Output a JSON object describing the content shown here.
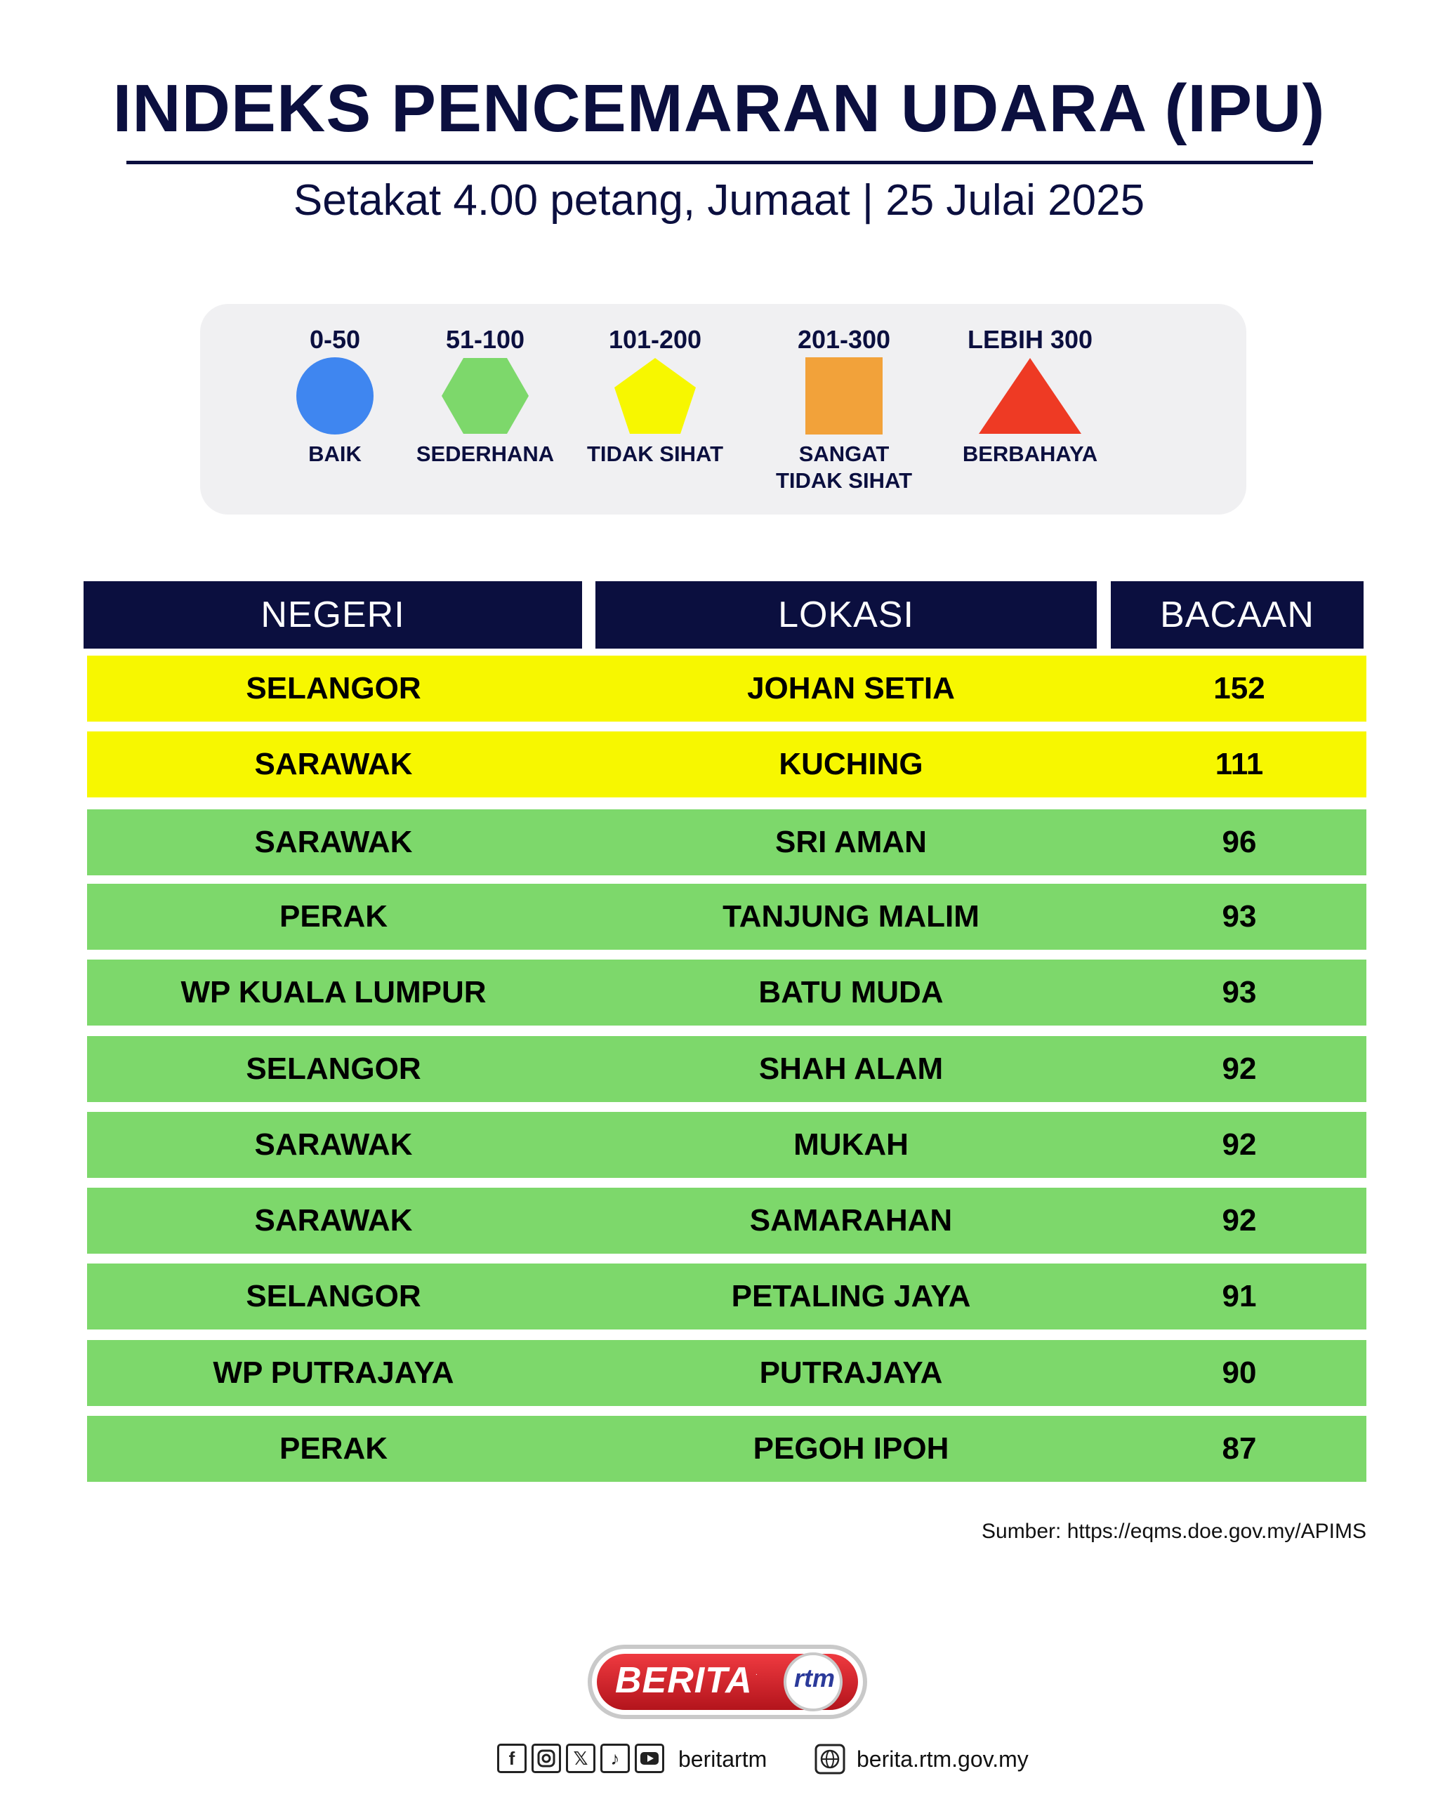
{
  "header": {
    "title": "INDEKS PENCEMARAN UDARA (IPU)",
    "subtitle": "Setakat 4.00 petang, Jumaat | 25 Julai 2025"
  },
  "legend": [
    {
      "range": "0-50",
      "label": "BAIK",
      "shape": "circle",
      "color": "#3f86f0"
    },
    {
      "range": "51-100",
      "label": "SEDERHANA",
      "shape": "hexagon",
      "color": "#7dd86b"
    },
    {
      "range": "101-200",
      "label": "TIDAK SIHAT",
      "shape": "pentagon",
      "color": "#f7f700"
    },
    {
      "range": "201-300",
      "label": "SANGAT TIDAK SIHAT",
      "label_line1": "SANGAT",
      "label_line2": "TIDAK SIHAT",
      "shape": "square",
      "color": "#f2a23a"
    },
    {
      "range": "LEBIH 300",
      "label": "BERBAHAYA",
      "shape": "triangle",
      "color": "#ee3a24"
    }
  ],
  "table": {
    "headers": [
      "NEGERI",
      "LOKASI",
      "BACAAN"
    ],
    "rows": [
      {
        "negeri": "SELANGOR",
        "lokasi": "JOHAN SETIA",
        "bacaan": "152",
        "status": "TIDAK SIHAT"
      },
      {
        "negeri": "SARAWAK",
        "lokasi": "KUCHING",
        "bacaan": "111",
        "status": "TIDAK SIHAT"
      },
      {
        "negeri": "SARAWAK",
        "lokasi": "SRI AMAN",
        "bacaan": "96",
        "status": "SEDERHANA"
      },
      {
        "negeri": "PERAK",
        "lokasi": "TANJUNG MALIM",
        "bacaan": "93",
        "status": "SEDERHANA"
      },
      {
        "negeri": "WP KUALA LUMPUR",
        "lokasi": "BATU MUDA",
        "bacaan": "93",
        "status": "SEDERHANA"
      },
      {
        "negeri": "SELANGOR",
        "lokasi": "SHAH ALAM",
        "bacaan": "92",
        "status": "SEDERHANA"
      },
      {
        "negeri": "SARAWAK",
        "lokasi": "MUKAH",
        "bacaan": "92",
        "status": "SEDERHANA"
      },
      {
        "negeri": "SARAWAK",
        "lokasi": "SAMARAHAN",
        "bacaan": "92",
        "status": "SEDERHANA"
      },
      {
        "negeri": "SELANGOR",
        "lokasi": "PETALING JAYA",
        "bacaan": "91",
        "status": "SEDERHANA"
      },
      {
        "negeri": "WP PUTRAJAYA",
        "lokasi": "PUTRAJAYA",
        "bacaan": "90",
        "status": "SEDERHANA"
      },
      {
        "negeri": "PERAK",
        "lokasi": "PEGOH IPOH",
        "bacaan": "87",
        "status": "SEDERHANA"
      }
    ]
  },
  "source": "Sumber: https://eqms.doe.gov.my/APIMS",
  "branding": {
    "logo_text": "BERITA",
    "logo_sub": "rtm",
    "social_icons": [
      "facebook-icon",
      "instagram-icon",
      "x-icon",
      "tiktok-icon",
      "youtube-icon"
    ],
    "social_handle": "beritartm",
    "website": "berita.rtm.gov.my"
  },
  "colors": {
    "navy": "#0b0f3f",
    "tidak_sihat": "#f7f700",
    "sederhana": "#7dd86b",
    "logo_red": "#d8202a"
  }
}
